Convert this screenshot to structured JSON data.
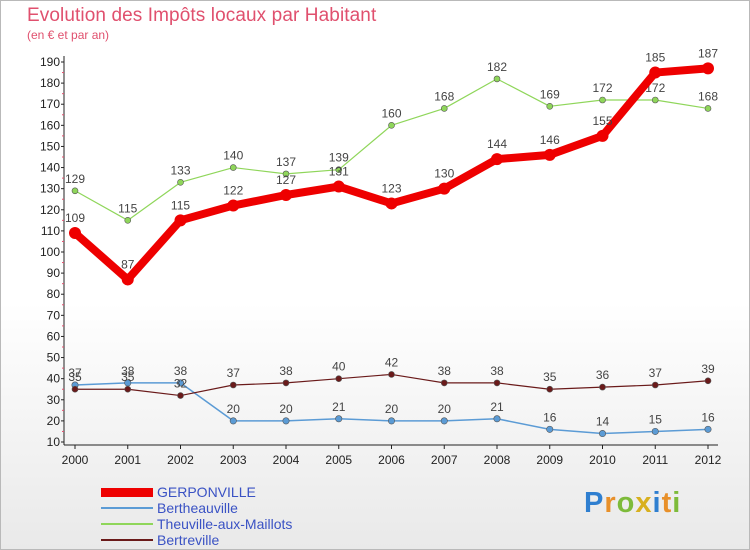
{
  "chart_data": {
    "type": "line",
    "title": "Evolution des Impôts locaux par Habitant",
    "subtitle": "(en € et par an)",
    "xlabel": "",
    "ylabel": "",
    "ylim": [
      10,
      190
    ],
    "yticks": [
      10,
      20,
      30,
      40,
      50,
      60,
      70,
      80,
      90,
      100,
      110,
      120,
      130,
      140,
      150,
      160,
      170,
      180,
      190
    ],
    "x": [
      "2000",
      "2001",
      "2002",
      "2003",
      "2004",
      "2005",
      "2006",
      "2007",
      "2008",
      "2009",
      "2010",
      "2011",
      "2012"
    ],
    "grid": false,
    "legend": "bottom-left",
    "series": [
      {
        "name": "GERPONVILLE",
        "color": "#ee0000",
        "values": [
          109,
          87,
          115,
          122,
          127,
          131,
          123,
          130,
          144,
          146,
          155,
          185,
          187
        ]
      },
      {
        "name": "Bertheauville",
        "color": "#5b9bd5",
        "values": [
          37,
          38,
          38,
          20,
          20,
          21,
          20,
          20,
          21,
          16,
          14,
          15,
          16
        ]
      },
      {
        "name": "Theuville-aux-Maillots",
        "color": "#8fd65a",
        "values": [
          129,
          115,
          133,
          140,
          137,
          139,
          160,
          168,
          182,
          169,
          172,
          172,
          168
        ]
      },
      {
        "name": "Bertreville",
        "color": "#6a1a1a",
        "values": [
          35,
          35,
          32,
          37,
          38,
          40,
          42,
          38,
          38,
          35,
          36,
          37,
          39
        ]
      }
    ]
  }
}
